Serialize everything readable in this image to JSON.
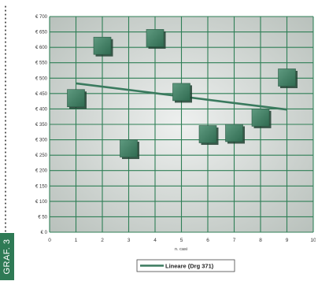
{
  "side_label": "GRAF. 3",
  "chart_data": {
    "type": "scatter",
    "title": "",
    "xlabel": "n. casi",
    "ylabel": "",
    "xlim": [
      0,
      10
    ],
    "ylim": [
      0,
      700
    ],
    "x_ticks": [
      0,
      1,
      2,
      3,
      4,
      5,
      6,
      7,
      8,
      9,
      10
    ],
    "y_ticks": [
      0,
      50,
      100,
      150,
      200,
      250,
      300,
      350,
      400,
      450,
      500,
      550,
      600,
      650,
      700
    ],
    "y_tick_labels": [
      "€ 0",
      "€ 50",
      "€ 100",
      "€ 150",
      "€ 200",
      "€ 250",
      "€ 300",
      "€ 350",
      "€ 400",
      "€ 450",
      "€ 500",
      "€ 550",
      "€ 600",
      "€ 650",
      "€ 700"
    ],
    "grid": true,
    "points": [
      {
        "x": 1,
        "y": 435
      },
      {
        "x": 2,
        "y": 605
      },
      {
        "x": 3,
        "y": 272
      },
      {
        "x": 4,
        "y": 630
      },
      {
        "x": 5,
        "y": 455
      },
      {
        "x": 6,
        "y": 318
      },
      {
        "x": 7,
        "y": 322
      },
      {
        "x": 8,
        "y": 372
      },
      {
        "x": 9,
        "y": 502
      }
    ],
    "trendline": {
      "name": "Lineare (Drg 371)",
      "start": {
        "x": 1,
        "y": 483
      },
      "end": {
        "x": 9,
        "y": 398
      }
    },
    "legend": {
      "position": "bottom",
      "entries": [
        "Lineare (Drg 371)"
      ]
    },
    "colors": {
      "plot_background": "#d3d8d5",
      "grid": "#2f7f56",
      "marker_fill": "#3f7d63",
      "marker_shadow": "#1f4030",
      "trendline": "#3a7a5e"
    }
  }
}
